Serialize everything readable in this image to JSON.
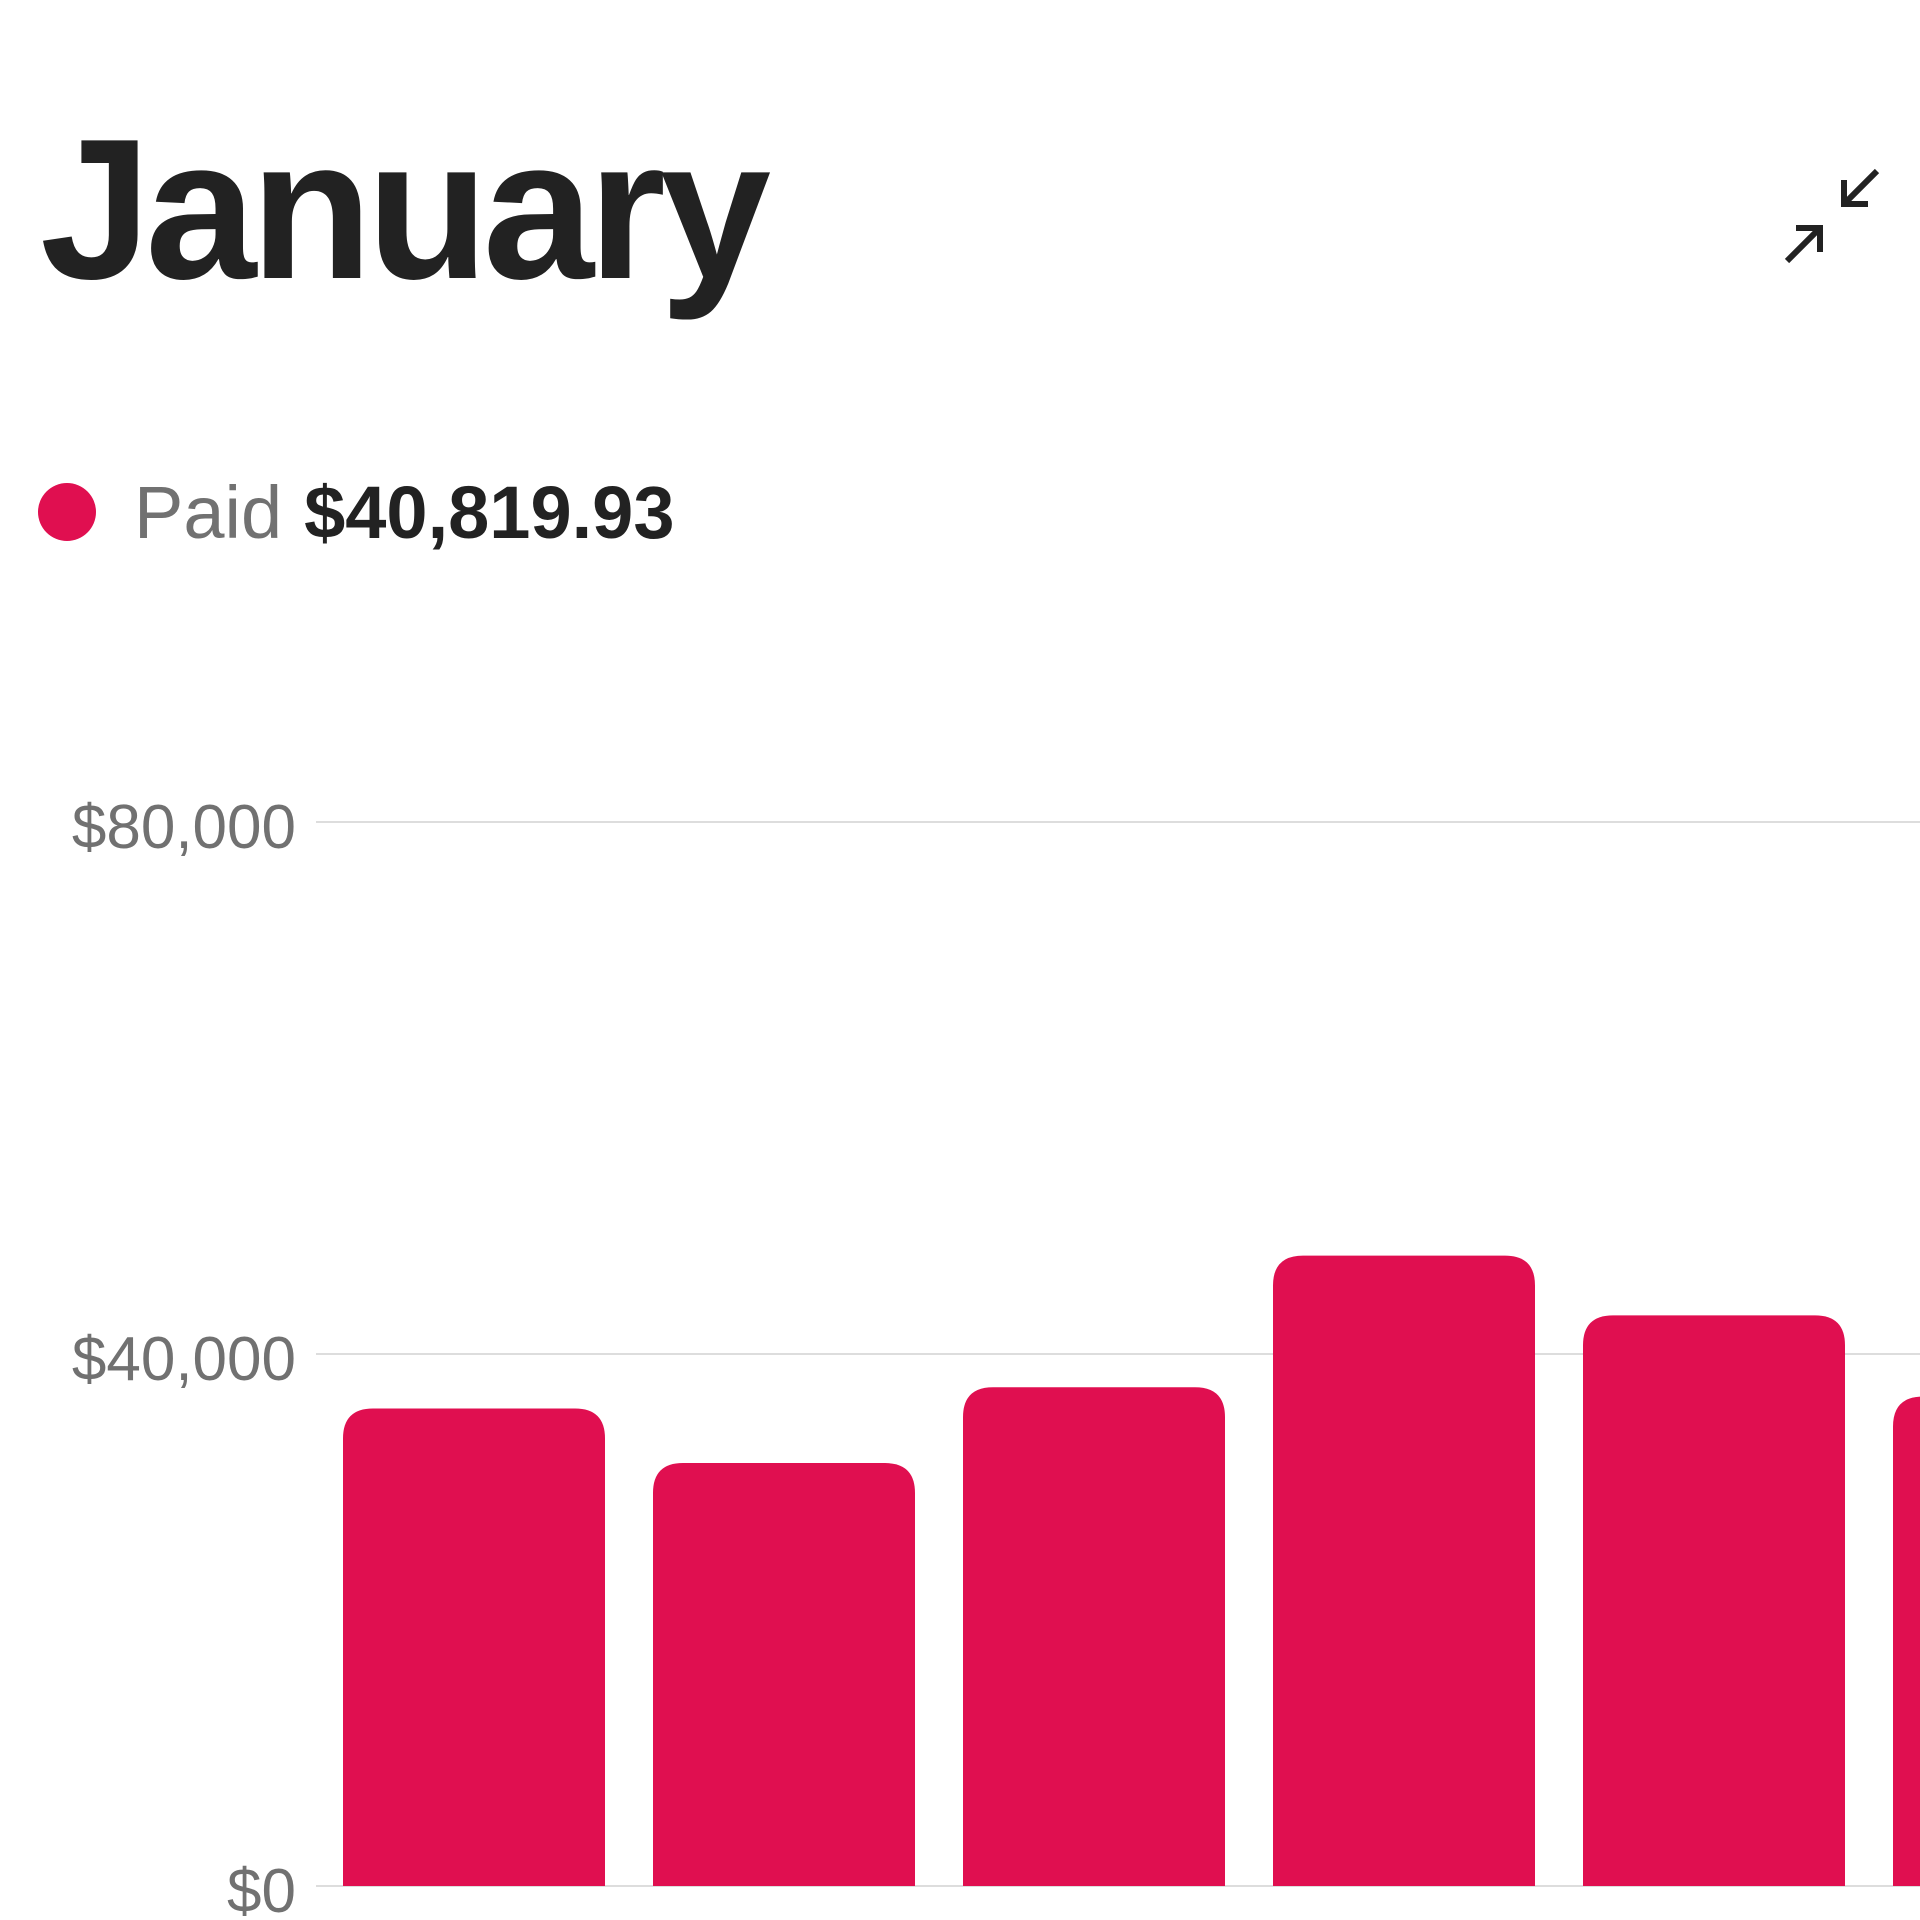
{
  "header": {
    "title": "January",
    "collapse_icon": "collapse-arrows-icon"
  },
  "legend": {
    "label": "Paid",
    "value": "$40,819.93",
    "color": "#e00f50"
  },
  "colors": {
    "bar": "#e00f50",
    "grid": "#dddddd",
    "tick_text": "#717171",
    "title_text": "#222222"
  },
  "chart_data": {
    "type": "bar",
    "series": [
      {
        "name": "Paid",
        "values": [
          35900,
          31800,
          37500,
          47400,
          42900,
          36800
        ]
      }
    ],
    "ylim": [
      0,
      80000
    ],
    "yticks": [
      0,
      40000,
      80000
    ],
    "ytick_labels": [
      "$0",
      "$40,000",
      "$80,000"
    ],
    "grid": true
  }
}
